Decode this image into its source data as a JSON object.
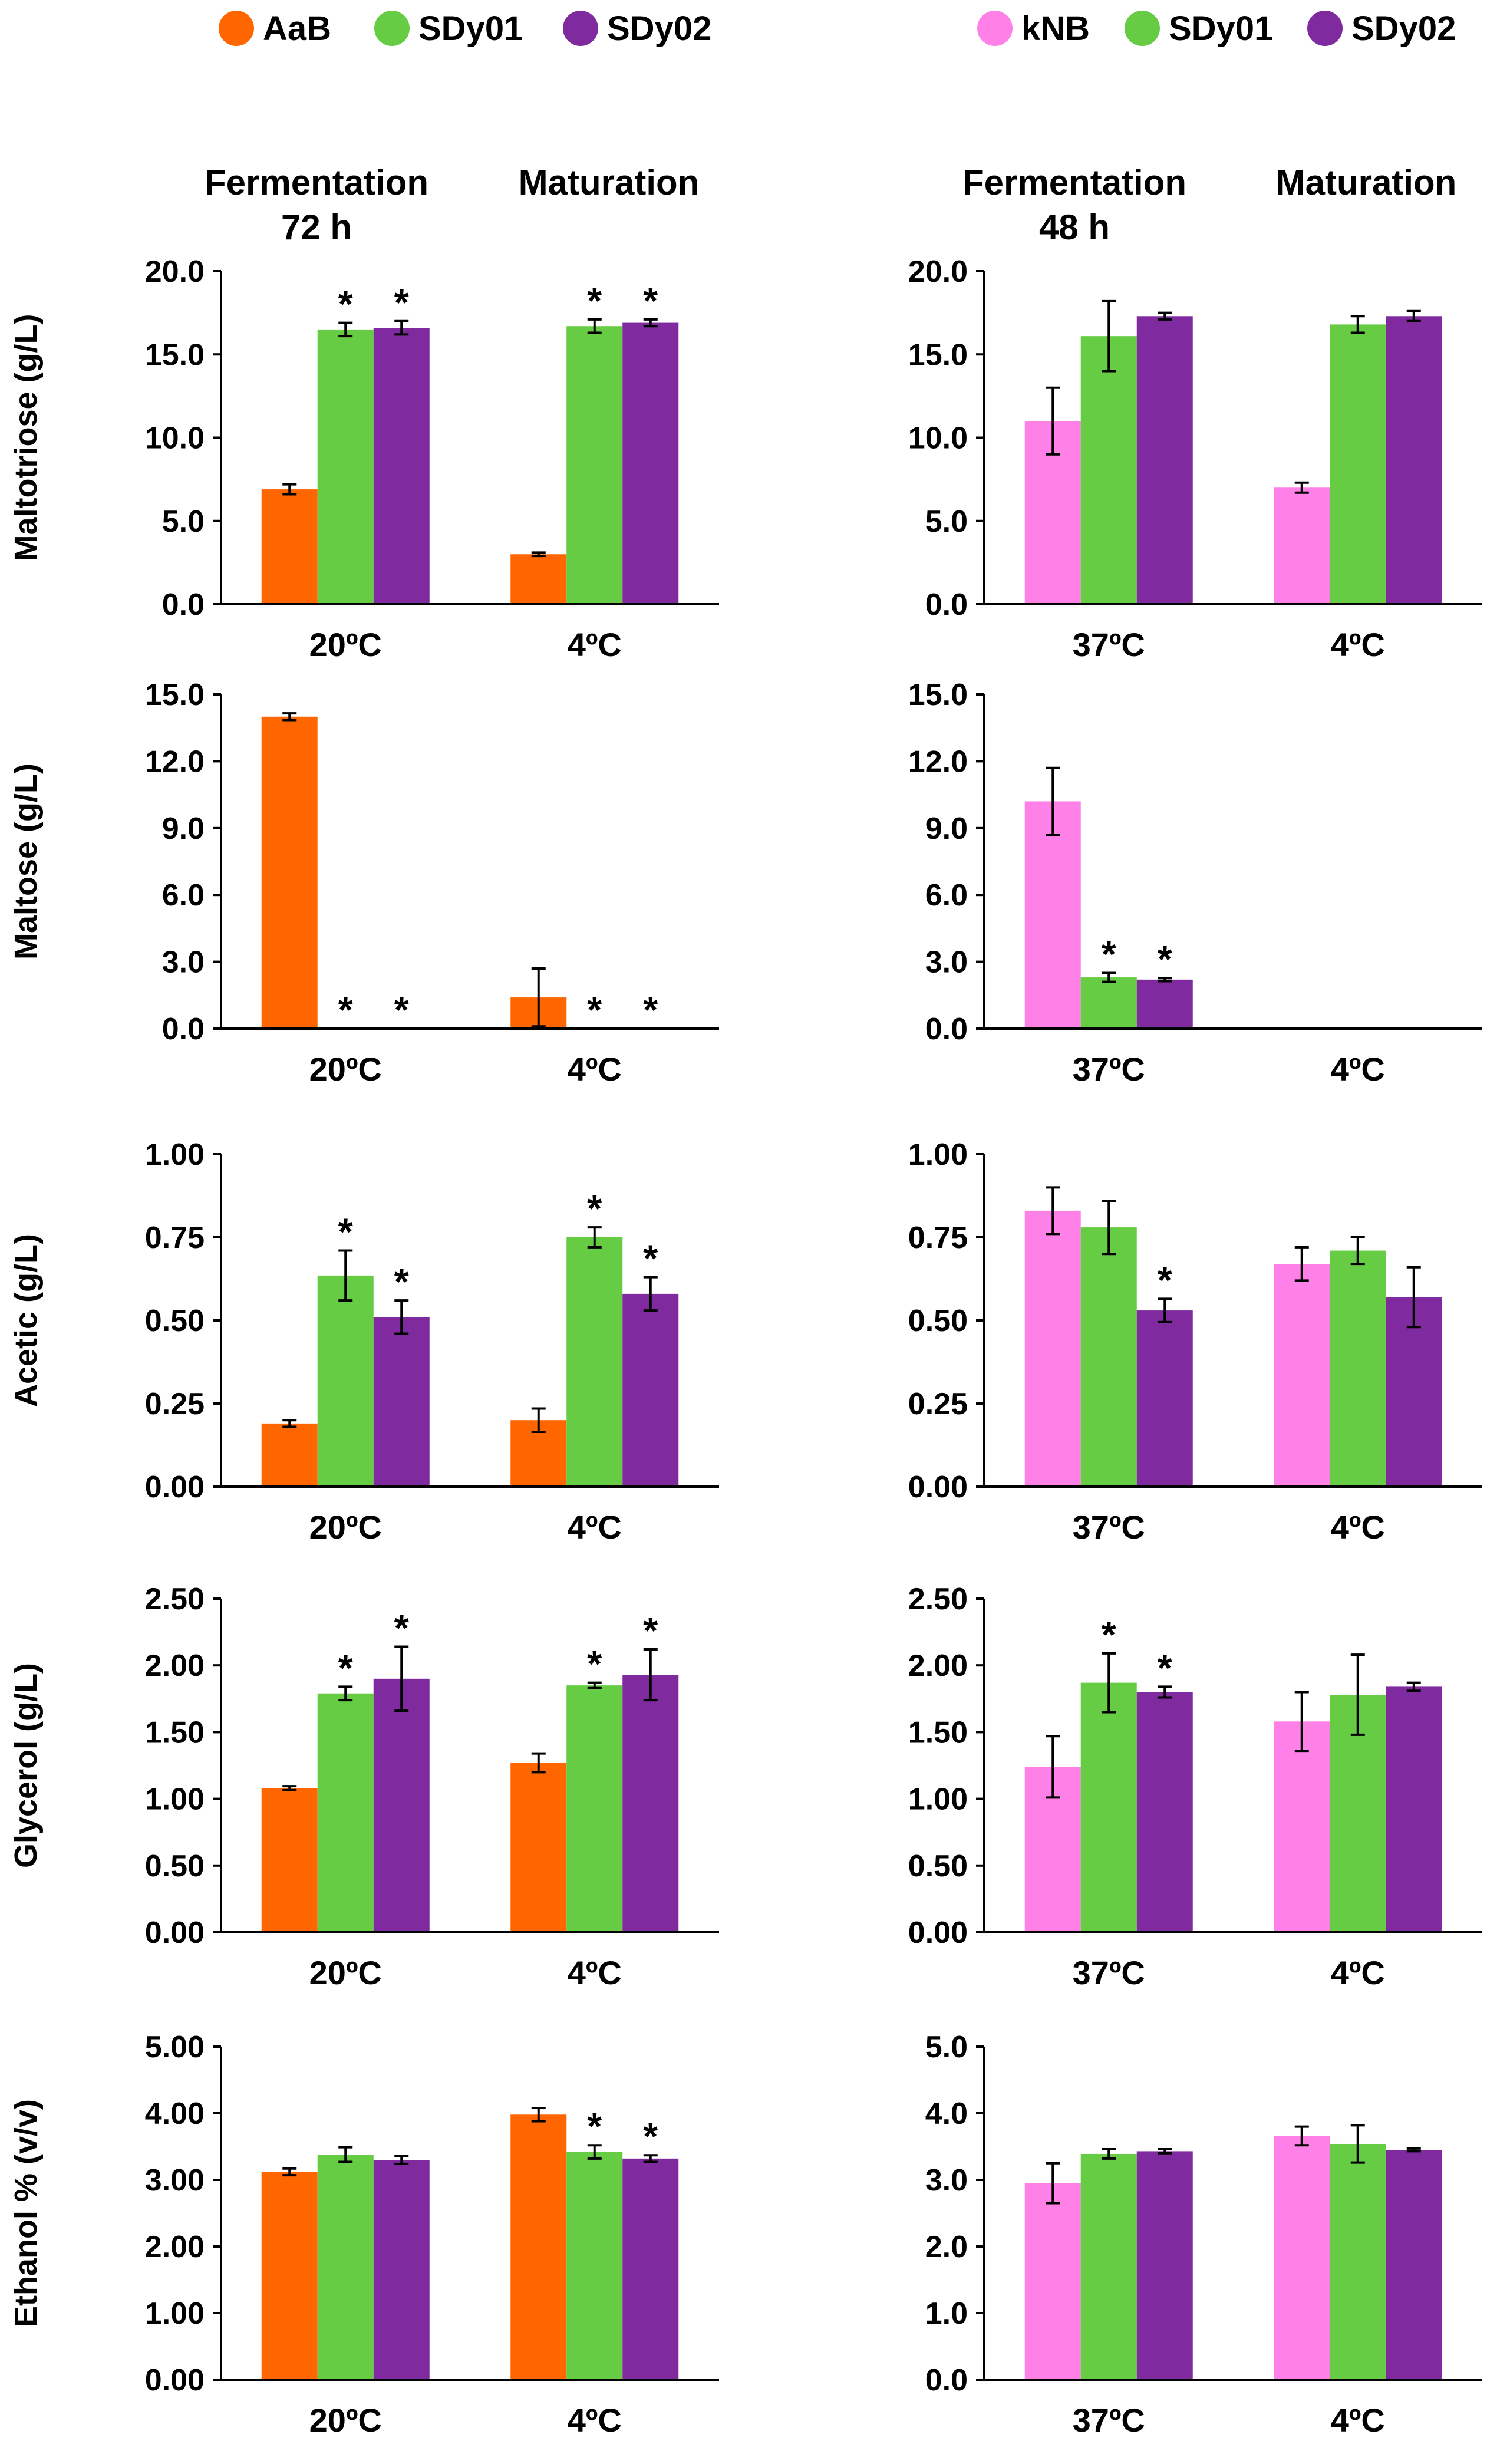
{
  "colors": {
    "AaB": "#ff6600",
    "kNB": "#ff80e6",
    "SDy01": "#66cc44",
    "SDy02": "#7f2a9e"
  },
  "legend_left": [
    {
      "name": "AaB",
      "color": "#ff6600"
    },
    {
      "name": "SDy01",
      "color": "#66cc44"
    },
    {
      "name": "SDy02",
      "color": "#7f2a9e"
    }
  ],
  "legend_right": [
    {
      "name": "kNB",
      "color": "#ff80e6"
    },
    {
      "name": "SDy01",
      "color": "#66cc44"
    },
    {
      "name": "SDy02",
      "color": "#7f2a9e"
    }
  ],
  "headers_left": {
    "fermentation": "Fermentation",
    "time": "72 h",
    "maturation": "Maturation"
  },
  "headers_right": {
    "fermentation": "Fermentation",
    "time": "48 h",
    "maturation": "Maturation"
  },
  "chart_data": [
    {
      "id": "L1",
      "type": "bar",
      "ylabel": "Maltotriose (g/L)",
      "categories": [
        "20ºC",
        "4ºC"
      ],
      "yticks": [
        "0.0",
        "5.0",
        "10.0",
        "15.0",
        "20.0"
      ],
      "ylim": [
        0,
        20
      ],
      "series": [
        {
          "name": "AaB",
          "color": "#ff6600",
          "values": [
            6.9,
            3.0
          ],
          "errors": [
            0.3,
            0.1
          ],
          "stars": [
            false,
            false
          ]
        },
        {
          "name": "SDy01",
          "color": "#66cc44",
          "values": [
            16.5,
            16.7
          ],
          "errors": [
            0.4,
            0.4
          ],
          "stars": [
            true,
            true
          ]
        },
        {
          "name": "SDy02",
          "color": "#7f2a9e",
          "values": [
            16.6,
            16.9
          ],
          "errors": [
            0.4,
            0.2
          ],
          "stars": [
            true,
            true
          ]
        }
      ]
    },
    {
      "id": "R1",
      "type": "bar",
      "ylabel": "",
      "categories": [
        "37ºC",
        "4ºC"
      ],
      "yticks": [
        "0.0",
        "5.0",
        "10.0",
        "15.0",
        "20.0"
      ],
      "ylim": [
        0,
        20
      ],
      "series": [
        {
          "name": "kNB",
          "color": "#ff80e6",
          "values": [
            11.0,
            7.0
          ],
          "errors": [
            2.0,
            0.3
          ],
          "stars": [
            false,
            false
          ]
        },
        {
          "name": "SDy01",
          "color": "#66cc44",
          "values": [
            16.1,
            16.8
          ],
          "errors": [
            2.1,
            0.5
          ],
          "stars": [
            false,
            false
          ]
        },
        {
          "name": "SDy02",
          "color": "#7f2a9e",
          "values": [
            17.3,
            17.3
          ],
          "errors": [
            0.2,
            0.3
          ],
          "stars": [
            false,
            false
          ]
        }
      ]
    },
    {
      "id": "L2",
      "type": "bar",
      "ylabel": "Maltose (g/L)",
      "categories": [
        "20ºC",
        "4ºC"
      ],
      "yticks": [
        "0.0",
        "3.0",
        "6.0",
        "9.0",
        "12.0",
        "15.0"
      ],
      "ylim": [
        0,
        15
      ],
      "series": [
        {
          "name": "AaB",
          "color": "#ff6600",
          "values": [
            14.0,
            1.4
          ],
          "errors": [
            0.15,
            1.3
          ],
          "stars": [
            false,
            false
          ]
        },
        {
          "name": "SDy01",
          "color": "#66cc44",
          "values": [
            0,
            0
          ],
          "errors": [
            0,
            0
          ],
          "stars": [
            true,
            true
          ]
        },
        {
          "name": "SDy02",
          "color": "#7f2a9e",
          "values": [
            0,
            0
          ],
          "errors": [
            0,
            0
          ],
          "stars": [
            true,
            true
          ]
        }
      ]
    },
    {
      "id": "R2",
      "type": "bar",
      "ylabel": "",
      "categories": [
        "37ºC",
        "4ºC"
      ],
      "yticks": [
        "0.0",
        "3.0",
        "6.0",
        "9.0",
        "12.0",
        "15.0"
      ],
      "ylim": [
        0,
        15
      ],
      "series": [
        {
          "name": "kNB",
          "color": "#ff80e6",
          "values": [
            10.2,
            0
          ],
          "errors": [
            1.5,
            0
          ],
          "stars": [
            false,
            false
          ]
        },
        {
          "name": "SDy01",
          "color": "#66cc44",
          "values": [
            2.3,
            0
          ],
          "errors": [
            0.2,
            0
          ],
          "stars": [
            true,
            false
          ]
        },
        {
          "name": "SDy02",
          "color": "#7f2a9e",
          "values": [
            2.2,
            0
          ],
          "errors": [
            0.07,
            0
          ],
          "stars": [
            true,
            false
          ]
        }
      ]
    },
    {
      "id": "L3",
      "type": "bar",
      "ylabel": "Acetic  (g/L)",
      "categories": [
        "20ºC",
        "4ºC"
      ],
      "yticks": [
        "0.00",
        "0.25",
        "0.50",
        "0.75",
        "1.00"
      ],
      "ylim": [
        0,
        1
      ],
      "series": [
        {
          "name": "AaB",
          "color": "#ff6600",
          "values": [
            0.19,
            0.2
          ],
          "errors": [
            0.01,
            0.035
          ],
          "stars": [
            false,
            false
          ]
        },
        {
          "name": "SDy01",
          "color": "#66cc44",
          "values": [
            0.635,
            0.75
          ],
          "errors": [
            0.075,
            0.03
          ],
          "stars": [
            true,
            true
          ]
        },
        {
          "name": "SDy02",
          "color": "#7f2a9e",
          "values": [
            0.51,
            0.58
          ],
          "errors": [
            0.05,
            0.05
          ],
          "stars": [
            true,
            true
          ]
        }
      ]
    },
    {
      "id": "R3",
      "type": "bar",
      "ylabel": "",
      "categories": [
        "37ºC",
        "4ºC"
      ],
      "yticks": [
        "0.00",
        "0.25",
        "0.50",
        "0.75",
        "1.00"
      ],
      "ylim": [
        0,
        1
      ],
      "series": [
        {
          "name": "kNB",
          "color": "#ff80e6",
          "values": [
            0.83,
            0.67
          ],
          "errors": [
            0.07,
            0.05
          ],
          "stars": [
            false,
            false
          ]
        },
        {
          "name": "SDy01",
          "color": "#66cc44",
          "values": [
            0.78,
            0.71
          ],
          "errors": [
            0.08,
            0.04
          ],
          "stars": [
            false,
            false
          ]
        },
        {
          "name": "SDy02",
          "color": "#7f2a9e",
          "values": [
            0.53,
            0.57
          ],
          "errors": [
            0.035,
            0.09
          ],
          "stars": [
            true,
            false
          ]
        }
      ]
    },
    {
      "id": "L4",
      "type": "bar",
      "ylabel": "Glycerol  (g/L)",
      "categories": [
        "20ºC",
        "4ºC"
      ],
      "yticks": [
        "0.00",
        "0.50",
        "1.00",
        "1.50",
        "2.00",
        "2.50"
      ],
      "ylim": [
        0,
        2.5
      ],
      "series": [
        {
          "name": "AaB",
          "color": "#ff6600",
          "values": [
            1.08,
            1.27
          ],
          "errors": [
            0.015,
            0.07
          ],
          "stars": [
            false,
            false
          ]
        },
        {
          "name": "SDy01",
          "color": "#66cc44",
          "values": [
            1.79,
            1.85
          ],
          "errors": [
            0.05,
            0.02
          ],
          "stars": [
            true,
            true
          ]
        },
        {
          "name": "SDy02",
          "color": "#7f2a9e",
          "values": [
            1.9,
            1.93
          ],
          "errors": [
            0.24,
            0.19
          ],
          "stars": [
            true,
            true
          ]
        }
      ]
    },
    {
      "id": "R4",
      "type": "bar",
      "ylabel": "",
      "categories": [
        "37ºC",
        "4ºC"
      ],
      "yticks": [
        "0.00",
        "0.50",
        "1.00",
        "1.50",
        "2.00",
        "2.50"
      ],
      "ylim": [
        0,
        2.5
      ],
      "series": [
        {
          "name": "kNB",
          "color": "#ff80e6",
          "values": [
            1.24,
            1.58
          ],
          "errors": [
            0.23,
            0.22
          ],
          "stars": [
            false,
            false
          ]
        },
        {
          "name": "SDy01",
          "color": "#66cc44",
          "values": [
            1.87,
            1.78
          ],
          "errors": [
            0.22,
            0.3
          ],
          "stars": [
            true,
            false
          ]
        },
        {
          "name": "SDy02",
          "color": "#7f2a9e",
          "values": [
            1.8,
            1.84
          ],
          "errors": [
            0.04,
            0.03
          ],
          "stars": [
            true,
            false
          ]
        }
      ]
    },
    {
      "id": "L5",
      "type": "bar",
      "ylabel": "Ethanol % (v/v)",
      "categories": [
        "20ºC",
        "4ºC"
      ],
      "yticks": [
        "0.00",
        "1.00",
        "2.00",
        "3.00",
        "4.00",
        "5.00"
      ],
      "ylim": [
        0,
        5
      ],
      "series": [
        {
          "name": "AaB",
          "color": "#ff6600",
          "values": [
            3.12,
            3.98
          ],
          "errors": [
            0.05,
            0.1
          ],
          "stars": [
            false,
            false
          ]
        },
        {
          "name": "SDy01",
          "color": "#66cc44",
          "values": [
            3.38,
            3.42
          ],
          "errors": [
            0.11,
            0.1
          ],
          "stars": [
            false,
            true
          ]
        },
        {
          "name": "SDy02",
          "color": "#7f2a9e",
          "values": [
            3.3,
            3.32
          ],
          "errors": [
            0.06,
            0.05
          ],
          "stars": [
            false,
            true
          ]
        }
      ]
    },
    {
      "id": "R5",
      "type": "bar",
      "ylabel": "",
      "categories": [
        "37ºC",
        "4ºC"
      ],
      "yticks": [
        "0.0",
        "1.0",
        "2.0",
        "3.0",
        "4.0",
        "5.0"
      ],
      "ylim": [
        0,
        5
      ],
      "series": [
        {
          "name": "kNB",
          "color": "#ff80e6",
          "values": [
            2.95,
            3.66
          ],
          "errors": [
            0.3,
            0.14
          ],
          "stars": [
            false,
            false
          ]
        },
        {
          "name": "SDy01",
          "color": "#66cc44",
          "values": [
            3.39,
            3.54
          ],
          "errors": [
            0.07,
            0.28
          ],
          "stars": [
            false,
            false
          ]
        },
        {
          "name": "SDy02",
          "color": "#7f2a9e",
          "values": [
            3.43,
            3.45
          ],
          "errors": [
            0.03,
            0.02
          ],
          "stars": [
            false,
            false
          ]
        }
      ]
    }
  ]
}
